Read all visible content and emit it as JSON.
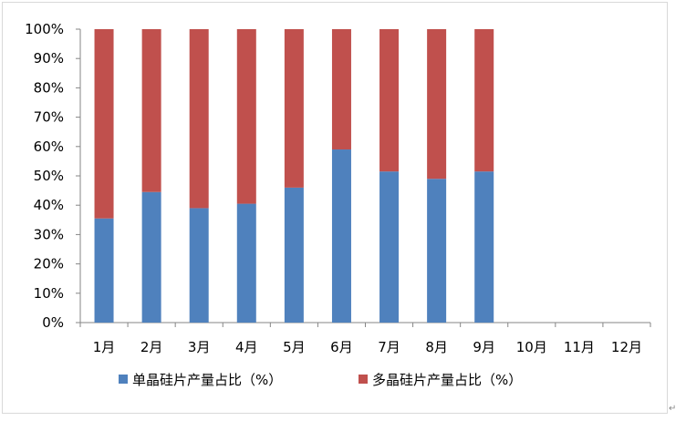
{
  "chart_data": {
    "type": "bar",
    "stacked": true,
    "categories": [
      "1月",
      "2月",
      "3月",
      "4月",
      "5月",
      "6月",
      "7月",
      "8月",
      "9月",
      "10月",
      "11月",
      "12月"
    ],
    "series": [
      {
        "name": "单晶硅片产量占比（%）",
        "color": "#4f81bd",
        "values": [
          35.5,
          44.5,
          39,
          40.5,
          46,
          59,
          51.5,
          49,
          51.5,
          null,
          null,
          null
        ]
      },
      {
        "name": "多晶硅片产量占比（%）",
        "color": "#c0504d",
        "values": [
          64.5,
          55.5,
          61,
          59.5,
          54,
          41,
          48.5,
          51,
          48.5,
          null,
          null,
          null
        ]
      }
    ],
    "yticks": [
      "0%",
      "10%",
      "20%",
      "30%",
      "40%",
      "50%",
      "60%",
      "70%",
      "80%",
      "90%",
      "100%"
    ],
    "ylim": [
      0,
      100
    ],
    "grid": false,
    "legend_position": "bottom",
    "title": "",
    "xlabel": "",
    "ylabel": ""
  },
  "corner_mark": "↵"
}
